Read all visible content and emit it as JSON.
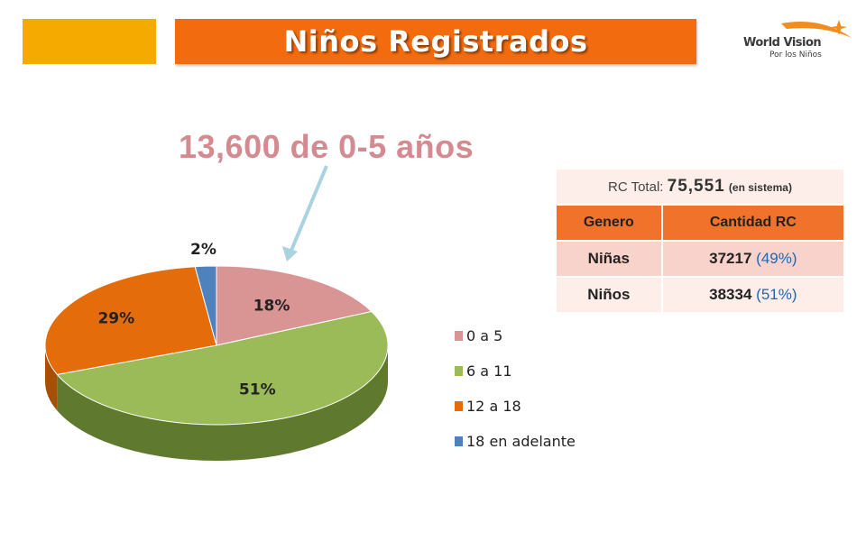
{
  "header": {
    "title": "Niños Registrados",
    "title_bg": "#f26b0f",
    "accent_bg": "#f5aa00"
  },
  "logo": {
    "name": "World Vision",
    "tagline": "Por los Niños",
    "star_color": "#f28c1e"
  },
  "callout": {
    "text": "13,600 de 0-5 años",
    "color": "#d48a91",
    "arrow_color": "#a9d3df"
  },
  "table": {
    "total_label": "RC Total:",
    "total_value": "75,551",
    "total_note": "(en sistema)",
    "header_bg": "#f0722b",
    "row_bg_1": "#f8d3cb",
    "row_bg_2": "#fdeeea",
    "columns": [
      "Genero",
      "Cantidad RC"
    ],
    "rows": [
      {
        "label": "Niñas",
        "count": "37217",
        "pct": "(49%)"
      },
      {
        "label": "Niños",
        "count": "38334",
        "pct": "(51%)"
      }
    ]
  },
  "chart_data": {
    "type": "pie",
    "categories": [
      "0 a 5",
      "6 a 11",
      "12 a 18",
      "18 en adelante"
    ],
    "values": [
      18,
      51,
      29,
      2
    ],
    "data_labels": [
      "18%",
      "51%",
      "29%",
      "2%"
    ],
    "colors": [
      "#d99594",
      "#9bbb59",
      "#e46c0a",
      "#4f81bd"
    ],
    "dark_colors": [
      "#a86d6c",
      "#5f7a2f",
      "#a54f07",
      "#2f5a8c"
    ],
    "legend_position": "right",
    "style": "3d"
  }
}
